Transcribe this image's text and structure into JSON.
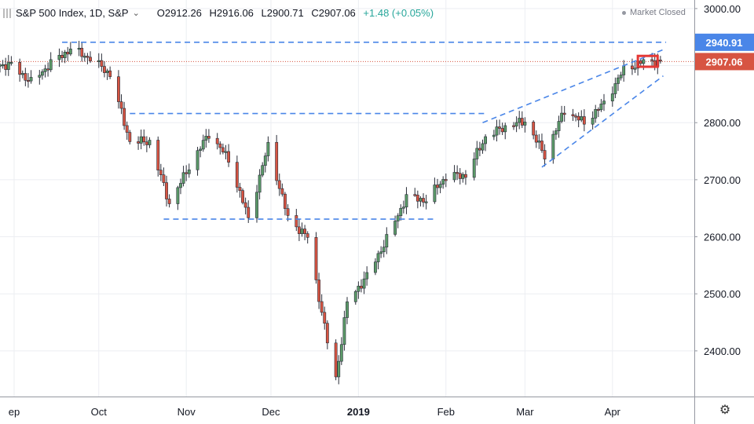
{
  "header": {
    "symbol_line": "S&P 500 Index, 1D, S&P",
    "open": "O2912.26",
    "high": "H2916.06",
    "low": "L2900.71",
    "close": "C2907.06",
    "change": "+1.48 (+0.05%)"
  },
  "status": {
    "market": "Market Closed"
  },
  "icons": {
    "settings": "gear-icon",
    "symbol": "bars-icon",
    "dropdown": "chevron-down-icon"
  },
  "colors": {
    "up": "#5b9a68",
    "down": "#d75442",
    "trend": "#4a86e8",
    "price_label": "#d75442",
    "level_label": "#4a86e8"
  },
  "chart_data": {
    "type": "candlestick",
    "title": "S&P 500 Index, 1D, S&P",
    "ylim": [
      2320,
      3015
    ],
    "y_ticks": [
      2400,
      2500,
      2600,
      2700,
      2800,
      2900,
      3000
    ],
    "y_tick_labels": [
      "2400.00",
      "2500.00",
      "2600.00",
      "2700.00",
      "2800.00",
      "2900.00",
      "3000.00"
    ],
    "x_labels": [
      {
        "label": "ep",
        "date": "2018-09-01"
      },
      {
        "label": "Oct",
        "date": "2018-10-01"
      },
      {
        "label": "Nov",
        "date": "2018-11-01"
      },
      {
        "label": "Dec",
        "date": "2018-12-01"
      },
      {
        "label": "2019",
        "date": "2019-01-01"
      },
      {
        "label": "Feb",
        "date": "2019-02-01"
      },
      {
        "label": "Mar",
        "date": "2019-03-01"
      },
      {
        "label": "Apr",
        "date": "2019-04-01"
      }
    ],
    "grid": true,
    "price_labels": [
      {
        "value": 2940.91,
        "text": "2940.91",
        "kind": "level"
      },
      {
        "value": 2907.06,
        "text": "2907.06",
        "kind": "last"
      }
    ],
    "close_points": [
      [
        "2018-08-31",
        2901
      ],
      [
        "2018-09-07",
        2871
      ],
      [
        "2018-09-14",
        2904
      ],
      [
        "2018-09-21",
        2929
      ],
      [
        "2018-09-28",
        2913
      ],
      [
        "2018-10-05",
        2885
      ],
      [
        "2018-10-12",
        2767
      ],
      [
        "2018-10-19",
        2767
      ],
      [
        "2018-10-26",
        2658
      ],
      [
        "2018-11-02",
        2723
      ],
      [
        "2018-11-09",
        2781
      ],
      [
        "2018-11-16",
        2736
      ],
      [
        "2018-11-23",
        2632
      ],
      [
        "2018-11-30",
        2760
      ],
      [
        "2018-12-07",
        2633
      ],
      [
        "2018-12-14",
        2599
      ],
      [
        "2018-12-21",
        2416
      ],
      [
        "2018-12-24",
        2351
      ],
      [
        "2018-12-28",
        2485
      ],
      [
        "2019-01-04",
        2531
      ],
      [
        "2019-01-11",
        2596
      ],
      [
        "2019-01-18",
        2670
      ],
      [
        "2019-01-25",
        2664
      ],
      [
        "2019-02-01",
        2706
      ],
      [
        "2019-02-08",
        2708
      ],
      [
        "2019-02-15",
        2775
      ],
      [
        "2019-02-22",
        2793
      ],
      [
        "2019-03-01",
        2803
      ],
      [
        "2019-03-08",
        2743
      ],
      [
        "2019-03-15",
        2822
      ],
      [
        "2019-03-22",
        2800
      ],
      [
        "2019-03-29",
        2834
      ],
      [
        "2019-04-05",
        2893
      ],
      [
        "2019-04-12",
        2907
      ]
    ],
    "annotations": [
      {
        "type": "hline",
        "value": 2940.91,
        "from": "2018-09-18",
        "to": "2019-04-20",
        "style": "dashed"
      },
      {
        "type": "hline",
        "value": 2816,
        "from": "2018-10-12",
        "to": "2019-02-15",
        "style": "dashed"
      },
      {
        "type": "hline",
        "value": 2631,
        "from": "2018-10-24",
        "to": "2019-01-28",
        "style": "dashed"
      },
      {
        "type": "trend",
        "from": [
          "2019-02-14",
          2800
        ],
        "to": [
          "2019-04-19",
          2928
        ],
        "style": "dashed"
      },
      {
        "type": "trend",
        "from": [
          "2019-03-07",
          2722
        ],
        "to": [
          "2019-04-19",
          2882
        ],
        "style": "dashed"
      },
      {
        "type": "box",
        "from": [
          "2019-04-10",
          2898
        ],
        "to": [
          "2019-04-17",
          2917
        ],
        "color": "#e53935"
      }
    ]
  }
}
